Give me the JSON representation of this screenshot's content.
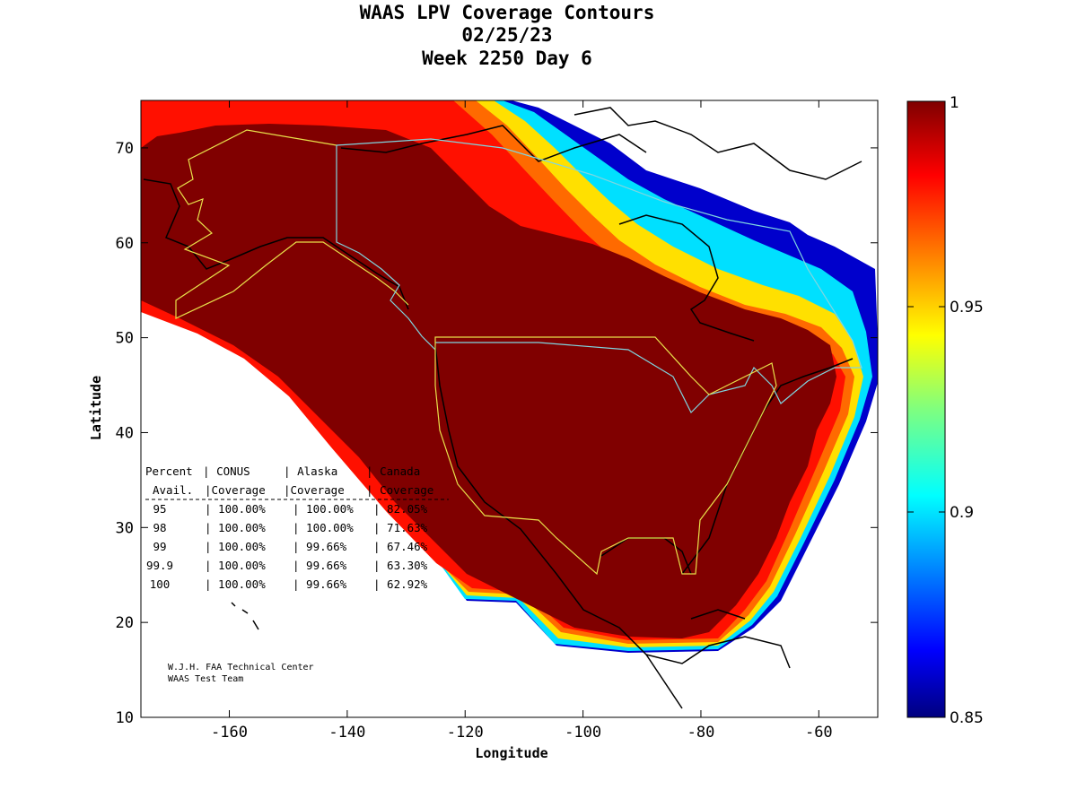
{
  "title": {
    "line1": "WAAS LPV Coverage Contours",
    "line2": "02/25/23",
    "line3": "Week 2250 Day 6"
  },
  "map": {
    "xlabel": "Longitude",
    "ylabel": "Latitude",
    "xlim": [
      -175,
      -50
    ],
    "ylim": [
      10,
      75
    ],
    "x_ticks": [
      -160,
      -140,
      -120,
      -100,
      -80,
      -60
    ],
    "x_tick_labels": [
      "-160",
      "-140",
      "-120",
      "-100",
      "-80",
      "-60"
    ],
    "y_ticks": [
      10,
      20,
      30,
      40,
      50,
      60,
      70
    ],
    "y_tick_labels": [
      "10",
      "20",
      "30",
      "40",
      "50",
      "60",
      "70"
    ]
  },
  "colorbar": {
    "min": 0.85,
    "max": 1,
    "tick_labels": [
      {
        "value": 1,
        "label": "1"
      },
      {
        "value": 0.95,
        "label": "0.95"
      },
      {
        "value": 0.9,
        "label": "0.9"
      },
      {
        "value": 0.85,
        "label": "0.85"
      }
    ],
    "colormap": [
      "#00007f",
      "#0000ff",
      "#007fff",
      "#00ffff",
      "#7fff7f",
      "#ffff00",
      "#ff7f00",
      "#ff0000",
      "#7f0000"
    ]
  },
  "coverage_table": {
    "header1": [
      "Percent",
      "CONUS",
      "Alaska",
      "Canada"
    ],
    "header2": [
      "Avail.",
      "Coverage",
      "Coverage",
      "Coverage"
    ],
    "rows": [
      [
        "95",
        "100.00%",
        "100.00%",
        "82.05%"
      ],
      [
        "98",
        "100.00%",
        "100.00%",
        "71.63%"
      ],
      [
        "99",
        "100.00%",
        "99.66%",
        "67.46%"
      ],
      [
        "99.9",
        "100.00%",
        "99.66%",
        "63.30%"
      ],
      [
        "100",
        "100.00%",
        "99.66%",
        "62.92%"
      ]
    ]
  },
  "credit": {
    "line1": "W.J.H. FAA Technical Center",
    "line2": "WAAS Test Team"
  },
  "colors": {
    "full_coverage": "#800000",
    "coastline": "#000000",
    "region_yellow": "#e8e04a",
    "region_cyan": "#7fd6e0"
  }
}
